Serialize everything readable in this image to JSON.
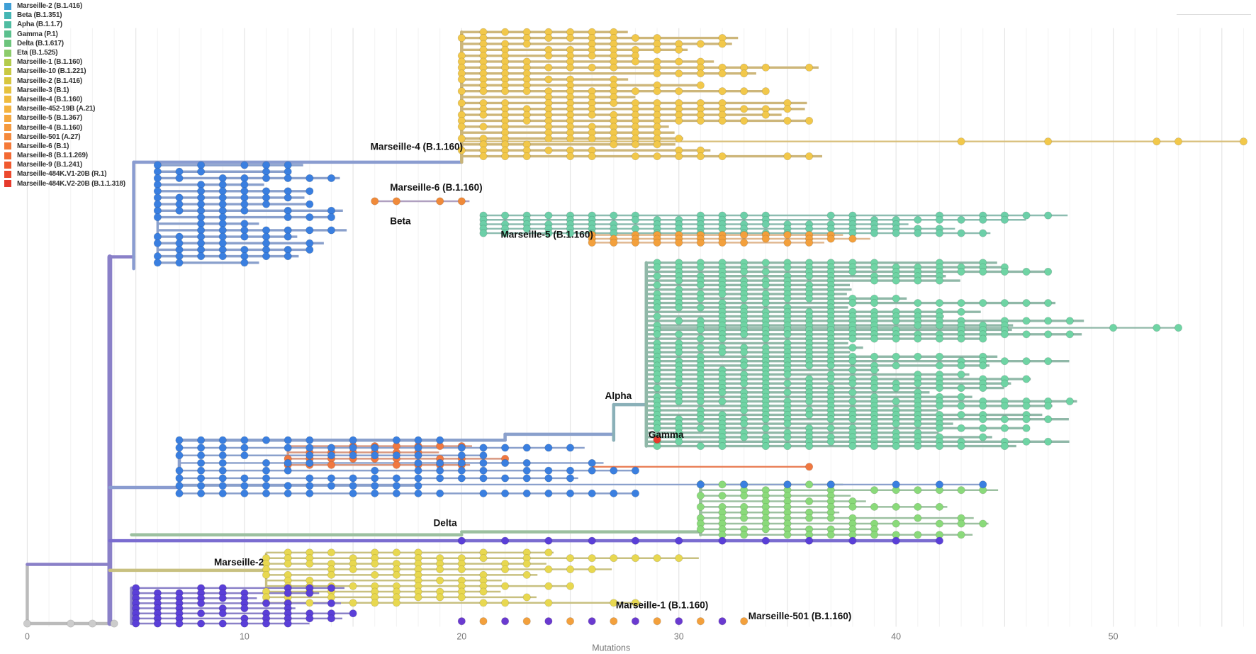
{
  "legend": [
    {
      "label": "Marseille-2 (B.1.416)",
      "color": "#3f9fd6"
    },
    {
      "label": "Beta (B.1.351)",
      "color": "#45b6b4"
    },
    {
      "label": "Apha (B.1.1.7)",
      "color": "#4fbca2"
    },
    {
      "label": "Gamma (P.1)",
      "color": "#5bc08e"
    },
    {
      "label": "Delta (B.1.617)",
      "color": "#6cc47c"
    },
    {
      "label": "Eta (B.1.525)",
      "color": "#8ccb6a"
    },
    {
      "label": "Marseille-1 (B.1.160)",
      "color": "#b3cb4c"
    },
    {
      "label": "Marseille-10 (B.1.221)",
      "color": "#c9c942"
    },
    {
      "label": "Marseille-2 (B.1.416)",
      "color": "#d8c63e"
    },
    {
      "label": "Marseille-3 (B.1)",
      "color": "#e6c23e"
    },
    {
      "label": "Marseille-4 (B.1.160)",
      "color": "#efbb3e"
    },
    {
      "label": "Marseille-452-19B (A.21)",
      "color": "#f4b33e"
    },
    {
      "label": "Marseille-5 (B.1.367)",
      "color": "#f5a83e"
    },
    {
      "label": "Marseille-4 (B.1.160)",
      "color": "#f59a3e"
    },
    {
      "label": "Marseille-501 (A.27)",
      "color": "#f58a3c"
    },
    {
      "label": "Marseille-6 (B.1)",
      "color": "#f57a38"
    },
    {
      "label": "Marseille-8 (B.1.1.269)",
      "color": "#f36a34"
    },
    {
      "label": "Marseille-9 (B.1.241)",
      "color": "#f05a30"
    },
    {
      "label": "Marseille-484K.V1-20B (R.1)",
      "color": "#ec4a2e"
    },
    {
      "label": "Marseille-484K.V2-20B (B.1.1.318)",
      "color": "#e63a2c"
    }
  ],
  "chart_data": {
    "type": "scatter",
    "subtype": "phylogenetic-tree",
    "xlabel": "Mutations",
    "xlim": [
      0,
      57
    ],
    "ylim": [
      0,
      100
    ],
    "xticks": [
      "0",
      "10",
      "20",
      "30",
      "40",
      "50"
    ],
    "xtick_values": [
      0,
      10,
      20,
      30,
      40,
      50
    ],
    "grid": true,
    "legend_position": "top-left",
    "backbone": [
      {
        "x": [
          0,
          0
        ],
        "y": [
          90,
          100
        ],
        "color": "#bbbbbb"
      },
      {
        "x": [
          0,
          4
        ],
        "y": [
          100,
          100
        ],
        "color": "#bbbbbb"
      },
      {
        "x": [
          0,
          3.8
        ],
        "y": [
          90,
          90
        ],
        "color": "#8a80c8"
      },
      {
        "x": [
          3.8,
          3.8
        ],
        "y": [
          38,
          100
        ],
        "color": "#8a80c8"
      },
      {
        "x": [
          3.8,
          4.9
        ],
        "y": [
          38,
          38
        ],
        "color": "#8a80c8"
      },
      {
        "x": [
          4.9,
          4.9
        ],
        "y": [
          22,
          40
        ],
        "color": "#8a9cd0"
      },
      {
        "x": [
          4.9,
          20
        ],
        "y": [
          22,
          22
        ],
        "color": "#8a9cd0"
      },
      {
        "x": [
          20,
          20
        ],
        "y": [
          0,
          22
        ],
        "color": "#c8b47a"
      },
      {
        "x": [
          3.8,
          7
        ],
        "y": [
          77,
          77
        ],
        "color": "#8a9cd0"
      },
      {
        "x": [
          7,
          7
        ],
        "y": [
          69,
          78
        ],
        "color": "#8a9cd0"
      },
      {
        "x": [
          7,
          22
        ],
        "y": [
          69,
          69
        ],
        "color": "#8aa0cc"
      },
      {
        "x": [
          22,
          22
        ],
        "y": [
          68,
          69
        ],
        "color": "#8aa0cc"
      },
      {
        "x": [
          22,
          27
        ],
        "y": [
          68,
          68
        ],
        "color": "#8aa0cc"
      },
      {
        "x": [
          27,
          27
        ],
        "y": [
          63,
          69
        ],
        "color": "#8ab0b8"
      },
      {
        "x": [
          27,
          28.5
        ],
        "y": [
          63,
          63
        ],
        "color": "#8ab0b8"
      },
      {
        "x": [
          28.5,
          28.5
        ],
        "y": [
          39,
          70
        ],
        "color": "#90b8a8"
      },
      {
        "x": [
          3.8,
          42
        ],
        "y": [
          86,
          86
        ],
        "color": "#7a6cd0"
      },
      {
        "x": [
          4.8,
          20
        ],
        "y": [
          85,
          85
        ],
        "color": "#9cc0a0"
      },
      {
        "x": [
          20,
          31
        ],
        "y": [
          84.5,
          84.5
        ],
        "color": "#9cc0a0"
      },
      {
        "x": [
          31,
          31
        ],
        "y": [
          76,
          85
        ],
        "color": "#9cc0a0"
      },
      {
        "x": [
          3.8,
          11
        ],
        "y": [
          91,
          91
        ],
        "color": "#c8c080"
      },
      {
        "x": [
          4.8,
          4.8
        ],
        "y": [
          94,
          100
        ],
        "color": "#8a80c8"
      }
    ],
    "clades": [
      {
        "name": "Marseille-4 (B.1.160)",
        "x0": 20,
        "x1": 37,
        "y0": 0,
        "y1": 21,
        "rows": 22,
        "node": "#f2c84a",
        "branch": "#cdb67a"
      },
      {
        "name": "top-blue",
        "x0": 6,
        "x1": 15,
        "y0": 22.5,
        "y1": 39,
        "rows": 16,
        "node": "#3a7fe0",
        "branch": "#8aa0cc"
      },
      {
        "name": "Marseille-6 (B.1.160)",
        "x0": 16,
        "x1": 21,
        "y0": 28.6,
        "y1": 28.6,
        "rows": 1,
        "node": "#f08a3a",
        "branch": "#b0a0c0"
      },
      {
        "name": "Beta",
        "x0": 21,
        "x1": 48,
        "y0": 31,
        "y1": 34,
        "rows": 5,
        "node": "#6ccfa8",
        "branch": "#8cbcb0"
      },
      {
        "name": "Marseille-5 (B.1.160)",
        "x0": 26,
        "x1": 40,
        "y0": 34.3,
        "y1": 35.6,
        "rows": 3,
        "node": "#f3a03c",
        "branch": "#e0b890"
      },
      {
        "name": "Alpha",
        "x0": 28.5,
        "x1": 49,
        "y0": 39,
        "y1": 70,
        "rows": 42,
        "node": "#6fd4a4",
        "branch": "#90b8a8"
      },
      {
        "name": "Marseille-8 (B.1.1.269)",
        "x0": 12,
        "x1": 27,
        "y0": 70,
        "y1": 73.2,
        "rows": 4,
        "node": "#f07840",
        "branch": "#d89880"
      },
      {
        "name": "mid-blue",
        "x0": 7,
        "x1": 29,
        "y0": 69,
        "y1": 78,
        "rows": 8,
        "node": "#3a7fe0",
        "branch": "#8aa0cc"
      },
      {
        "name": "Delta",
        "x0": 31,
        "x1": 45,
        "y0": 76.5,
        "y1": 85,
        "rows": 10,
        "node": "#8ada7a",
        "branch": "#9cc0a0"
      },
      {
        "name": "Marseille-2",
        "x0": 11,
        "x1": 33,
        "y0": 88,
        "y1": 96.5,
        "rows": 10,
        "node": "#e8d850",
        "branch": "#c8c080"
      },
      {
        "name": "bottom-purple",
        "x0": 5,
        "x1": 16,
        "y0": 94,
        "y1": 100,
        "rows": 8,
        "node": "#5a3fd8",
        "branch": "#8a80c8"
      }
    ],
    "annotations": [
      {
        "text": "Marseille-4 (B.1.160)",
        "x": 15.8,
        "y": 19.9
      },
      {
        "text": "Marseille-6 (B.1.160)",
        "x": 16.7,
        "y": 26.8
      },
      {
        "text": "Beta",
        "x": 16.7,
        "y": 32.5
      },
      {
        "text": "Marseille-5 (B.1.160)",
        "x": 21.8,
        "y": 34.8
      },
      {
        "text": "Alpha",
        "x": 26.6,
        "y": 62
      },
      {
        "text": "Gamma",
        "x": 28.6,
        "y": 68.6
      },
      {
        "text": "Delta",
        "x": 18.7,
        "y": 83.5
      },
      {
        "text": "Marseille-2",
        "x": 8.6,
        "y": 90.2
      },
      {
        "text": "Marseille-1 (B.1.160)",
        "x": 27.1,
        "y": 97.4
      },
      {
        "text": "Marseille-501 (B.1.160)",
        "x": 33.2,
        "y": 99.3
      }
    ]
  }
}
